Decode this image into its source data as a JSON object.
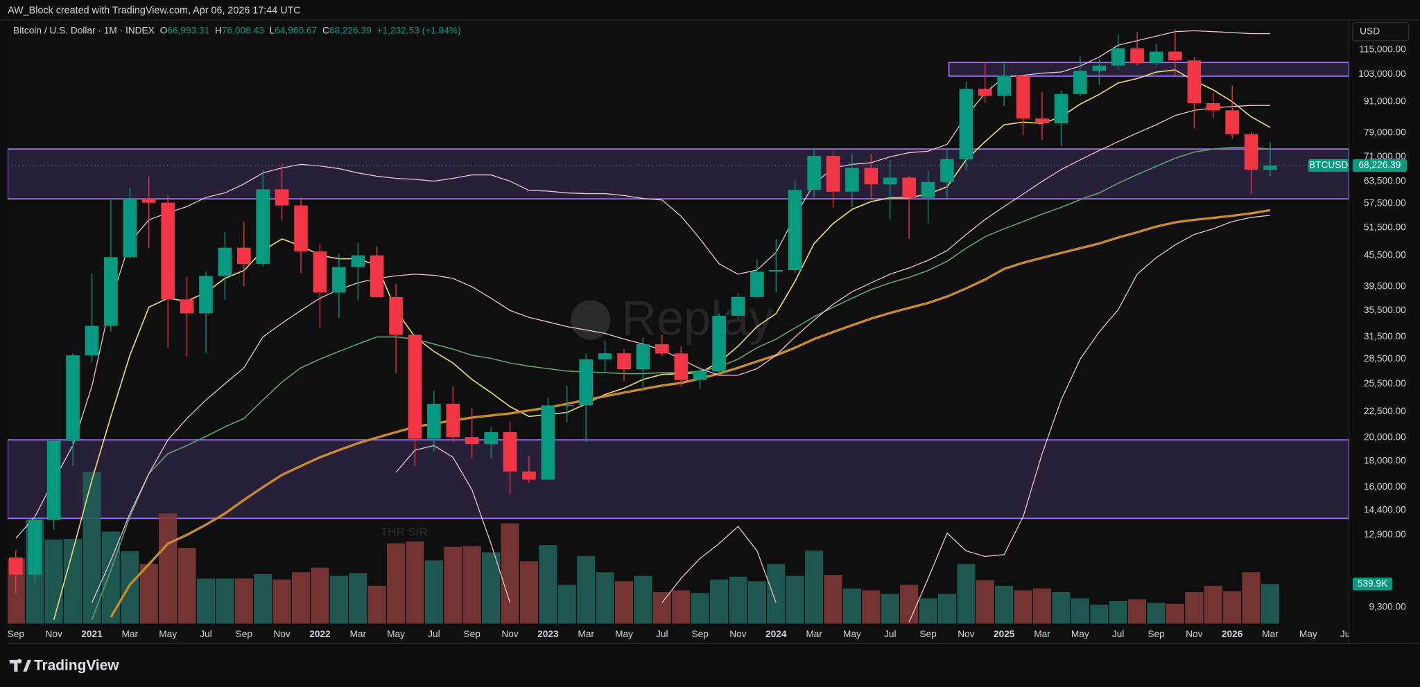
{
  "header": {
    "title": "AW_Block created with TradingView.com, Apr 06, 2026 17:44 UTC"
  },
  "chart_data": {
    "type": "candlestick",
    "legend": {
      "symbol": "Bitcoin / U.S. Dollar · 1M · INDEX",
      "letters": [
        "O",
        "H",
        "L",
        "C"
      ],
      "open_label": "66,993.31",
      "high_label": "76,008.43",
      "low_label": "64,960.67",
      "close_label": "68,226.39",
      "change": "+1,232.53 (+1.84%)"
    },
    "currency": "USD",
    "ticker": "BTCUSD",
    "watermark": "Replay",
    "annotation": "THR S/R",
    "log_scale": true,
    "up_color": "#089981",
    "down_color": "#f23645",
    "volume_up_color": "#1f5f57",
    "volume_down_color": "#7e3737",
    "zone_color": "#9c6cf5",
    "categories": [
      "Sep",
      null,
      "Nov",
      null,
      "2021",
      null,
      "Mar",
      null,
      "May",
      null,
      "Jul",
      null,
      "Sep",
      null,
      "Nov",
      null,
      "2022",
      null,
      "Mar",
      null,
      "May",
      null,
      "Jul",
      null,
      "Sep",
      null,
      "Nov",
      null,
      "2023",
      null,
      "Mar",
      null,
      "May",
      null,
      "Jul",
      null,
      "Sep",
      null,
      "Nov",
      null,
      "2024",
      null,
      "Mar",
      null,
      "May",
      null,
      "Jul",
      null,
      "Sep",
      null,
      "Nov",
      null,
      "2025",
      null,
      "Mar",
      null,
      "May",
      null,
      "Jul",
      null,
      "Sep",
      null,
      "Nov",
      null,
      "2026",
      null,
      "Mar",
      null,
      "May",
      null,
      "Jul"
    ],
    "open": [
      11650,
      10780,
      13800,
      19700,
      28990,
      33110,
      45140,
      58800,
      57700,
      37300,
      35040,
      41460,
      47100,
      43800,
      61300,
      57000,
      46300,
      38480,
      43180,
      45500,
      37700,
      31800,
      19900,
      23300,
      20050,
      19430,
      20500,
      17170,
      16550,
      23130,
      23150,
      28470,
      29250,
      27220,
      30470,
      29230,
      25940,
      26960,
      34650,
      37720,
      42280,
      42580,
      61130,
      71280,
      60640,
      67490,
      62680,
      64620,
      58970,
      63330,
      70220,
      96400,
      93430,
      102400,
      84350,
      82550,
      94200,
      104600,
      107100,
      115750,
      108250,
      114050,
      109600,
      90400,
      87500,
      78600,
      66993.31,
      null,
      null,
      null,
      null
    ],
    "high": [
      12050,
      14100,
      19860,
      29300,
      41950,
      58350,
      61800,
      64850,
      59600,
      41300,
      42300,
      50500,
      52900,
      67000,
      69000,
      59100,
      47990,
      45800,
      48200,
      47400,
      40000,
      31900,
      24700,
      25200,
      22800,
      21000,
      21500,
      18400,
      23900,
      25300,
      29200,
      31000,
      29800,
      31400,
      31800,
      30200,
      27500,
      35000,
      38400,
      44700,
      48970,
      64000,
      73800,
      72800,
      72000,
      71900,
      70000,
      65100,
      66500,
      73600,
      99600,
      108300,
      109400,
      102500,
      95000,
      95700,
      112000,
      110500,
      123200,
      124500,
      117900,
      126200,
      111200,
      94600,
      97900,
      79500,
      76008.43,
      null,
      null,
      null,
      null
    ],
    "low": [
      9850,
      10370,
      13200,
      17600,
      28100,
      32300,
      45000,
      47000,
      30000,
      28800,
      29300,
      37300,
      39600,
      43300,
      53300,
      42000,
      32900,
      34300,
      37200,
      37600,
      26700,
      17600,
      18800,
      19600,
      18200,
      18200,
      15500,
      16300,
      16500,
      21400,
      19600,
      26900,
      25800,
      24800,
      28900,
      25200,
      24900,
      26600,
      34100,
      37600,
      38500,
      41900,
      59000,
      56500,
      56600,
      58400,
      53500,
      49000,
      52600,
      58900,
      66800,
      90500,
      89200,
      78200,
      76600,
      74500,
      93400,
      98200,
      105100,
      107300,
      107300,
      102000,
      80600,
      84400,
      77000,
      60000,
      64960.67,
      null,
      null,
      null,
      null
    ],
    "close": [
      10780,
      13800,
      19700,
      28990,
      33110,
      45140,
      58800,
      57700,
      37300,
      35040,
      41460,
      47100,
      43800,
      61300,
      57000,
      46300,
      38480,
      43180,
      45500,
      37700,
      31800,
      19900,
      23300,
      20050,
      19430,
      20500,
      17170,
      16550,
      23130,
      23150,
      28470,
      29250,
      27220,
      30470,
      29230,
      25940,
      26960,
      34650,
      37720,
      42280,
      42580,
      61130,
      71280,
      60640,
      67490,
      62680,
      64620,
      58970,
      63330,
      70220,
      96400,
      93430,
      102400,
      84350,
      82550,
      94200,
      104600,
      107100,
      115750,
      108250,
      114050,
      109600,
      90400,
      87500,
      78600,
      67000,
      68226.39,
      null,
      null,
      null,
      null
    ],
    "volumes": [
      883,
      1411,
      1141,
      1153,
      2061,
      1252,
      982,
      810,
      1497,
      1031,
      613,
      613,
      613,
      675,
      601,
      699,
      761,
      650,
      687,
      515,
      1092,
      1117,
      859,
      1043,
      1055,
      969,
      1362,
      847,
      1067,
      528,
      920,
      699,
      577,
      650,
      429,
      454,
      417,
      601,
      638,
      577,
      810,
      650,
      994,
      663,
      479,
      454,
      405,
      528,
      344,
      405,
      810,
      589,
      515,
      454,
      479,
      429,
      344,
      258,
      307,
      331,
      282,
      270,
      429,
      515,
      442,
      699,
      539.9,
      null,
      null,
      null,
      null
    ],
    "volume_last_label": "539.9K",
    "series": [
      {
        "color": "#e9d37a",
        "width": 1.3,
        "values": [
          null,
          null,
          8800,
          12000,
          16500,
          22000,
          29000,
          36000,
          37500,
          37000,
          38500,
          41000,
          42500,
          46500,
          49000,
          47500,
          45500,
          44800,
          44800,
          43500,
          35500,
          31500,
          29500,
          28000,
          26000,
          24500,
          23000,
          22000,
          22200,
          22400,
          23300,
          24300,
          25000,
          26000,
          26600,
          26700,
          26800,
          28100,
          30200,
          33000,
          35000,
          40500,
          48000,
          52500,
          56000,
          58000,
          59000,
          59000,
          60000,
          62000,
          70000,
          76000,
          82000,
          83000,
          82500,
          85000,
          90000,
          94000,
          99000,
          101000,
          104000,
          105000,
          100000,
          96000,
          91000,
          85000,
          81000,
          null,
          null,
          null,
          null
        ]
      },
      {
        "color": "#5e9c6c",
        "width": 1.3,
        "values": [
          null,
          null,
          null,
          null,
          8800,
          11000,
          14000,
          17000,
          18600,
          19300,
          20100,
          21000,
          21800,
          23700,
          25700,
          27400,
          28500,
          29500,
          30500,
          31500,
          31500,
          31200,
          30500,
          29800,
          29000,
          28600,
          28000,
          27600,
          27300,
          27000,
          26900,
          26800,
          26700,
          26700,
          26800,
          26800,
          27000,
          27500,
          28500,
          30000,
          31200,
          32800,
          34500,
          36000,
          37500,
          39000,
          40200,
          41200,
          42500,
          44300,
          47000,
          49500,
          51300,
          53000,
          54800,
          56500,
          58500,
          60300,
          63000,
          65500,
          68000,
          70500,
          72500,
          73500,
          74000,
          74000,
          73500,
          null,
          null,
          null,
          null
        ]
      },
      {
        "color": "#c98a2e",
        "width": 2.6,
        "values": [
          null,
          null,
          null,
          null,
          null,
          8900,
          10300,
          11300,
          12400,
          12900,
          13500,
          14200,
          15100,
          16000,
          16900,
          17600,
          18300,
          18900,
          19500,
          20000,
          20500,
          21000,
          21300,
          21600,
          21900,
          22100,
          22300,
          22600,
          22900,
          23300,
          23700,
          24100,
          24500,
          24900,
          25300,
          25600,
          26100,
          26700,
          27400,
          28200,
          29000,
          30000,
          31200,
          32200,
          33200,
          34200,
          35100,
          35900,
          36700,
          37800,
          39200,
          40800,
          42800,
          44000,
          45000,
          46000,
          47000,
          48000,
          49300,
          50500,
          51800,
          52800,
          53400,
          53900,
          54400,
          55000,
          55800,
          null,
          null,
          null,
          null
        ]
      },
      {
        "color": "#efc3d3",
        "width": 1,
        "values": [
          12700,
          14000,
          16500,
          19300,
          25200,
          37000,
          48300,
          53400,
          55100,
          56700,
          59100,
          60300,
          62800,
          66000,
          67500,
          68600,
          68100,
          67300,
          66000,
          65000,
          64400,
          64100,
          63600,
          64400,
          65400,
          65400,
          63600,
          61000,
          60800,
          60300,
          60100,
          60100,
          59600,
          58800,
          58400,
          54300,
          49000,
          43800,
          41800,
          42600,
          46100,
          54300,
          62800,
          67500,
          68600,
          69100,
          71000,
          72300,
          72800,
          75100,
          85300,
          94500,
          101700,
          102500,
          103500,
          104000,
          106800,
          111300,
          117400,
          119800,
          122300,
          124800,
          125300,
          124800,
          124300,
          123700,
          123700,
          null,
          null,
          null,
          null
        ]
      },
      {
        "color": "#efc3d3",
        "width": 1,
        "values": [
          null,
          null,
          null,
          null,
          9500,
          11500,
          14200,
          17000,
          19800,
          21800,
          23700,
          25500,
          27400,
          31500,
          33500,
          35500,
          37500,
          39000,
          40200,
          41000,
          41500,
          41800,
          41600,
          41000,
          39500,
          37500,
          35500,
          34400,
          33700,
          33000,
          32500,
          32000,
          31200,
          30500,
          29700,
          28500,
          27300,
          26500,
          26500,
          27300,
          29000,
          31500,
          34000,
          36500,
          38600,
          40200,
          41800,
          43000,
          44500,
          46500,
          50000,
          53500,
          56700,
          60000,
          63500,
          67000,
          70000,
          73000,
          76000,
          79000,
          82000,
          85500,
          87500,
          88500,
          89000,
          89500,
          89500,
          null,
          null,
          null,
          null
        ]
      },
      {
        "color": "#efc3d3",
        "width": 1,
        "values": [
          null,
          null,
          null,
          null,
          null,
          null,
          null,
          null,
          null,
          null,
          null,
          null,
          null,
          null,
          null,
          null,
          null,
          null,
          null,
          null,
          17100,
          18900,
          19300,
          18300,
          15800,
          12400,
          9500,
          null,
          null,
          null,
          null,
          null,
          null,
          null,
          9500,
          10600,
          11600,
          12400,
          13400,
          12000,
          9500,
          null,
          null,
          null,
          null,
          null,
          null,
          8700,
          10600,
          13000,
          12000,
          11700,
          11800,
          14000,
          18600,
          23700,
          28500,
          32200,
          35600,
          41800,
          45000,
          47700,
          50000,
          51300,
          53000,
          54000,
          54500,
          null,
          null,
          null,
          null
        ]
      }
    ],
    "zones": [
      {
        "top": 73500,
        "bottom": 58700
      },
      {
        "top": 19800,
        "bottom": 13900
      },
      {
        "top": 108600,
        "bottom": 102100
      }
    ],
    "ylim": [
      8640,
      131600
    ],
    "yticks": [
      {
        "value": 115000,
        "label": "115,000.00"
      },
      {
        "value": 103000,
        "label": "103,000.00"
      },
      {
        "value": 91000,
        "label": "91,000.00"
      },
      {
        "value": 79000,
        "label": "79,000.00"
      },
      {
        "value": 71000,
        "label": "71,000.00"
      },
      {
        "value": 63500,
        "label": "63,500.00"
      },
      {
        "value": 57500,
        "label": "57,500.00"
      },
      {
        "value": 51500,
        "label": "51,500.00"
      },
      {
        "value": 45500,
        "label": "45,500.00"
      },
      {
        "value": 39500,
        "label": "39,500.00"
      },
      {
        "value": 35500,
        "label": "35,500.00"
      },
      {
        "value": 31500,
        "label": "31,500.00"
      },
      {
        "value": 28500,
        "label": "28,500.00"
      },
      {
        "value": 25500,
        "label": "25,500.00"
      },
      {
        "value": 22500,
        "label": "22,500.00"
      },
      {
        "value": 20000,
        "label": "20,000.00"
      },
      {
        "value": 18000,
        "label": "18,000.00"
      },
      {
        "value": 16000,
        "label": "16,000.00"
      },
      {
        "value": 14400,
        "label": "14,400.00"
      },
      {
        "value": 12900,
        "label": "12,900.00"
      },
      {
        "value": 9300,
        "label": "9,300.00"
      }
    ]
  },
  "footer": {
    "brand": "TradingView"
  }
}
